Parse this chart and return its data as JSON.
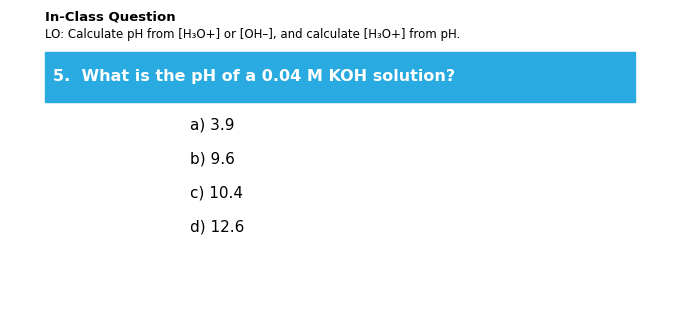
{
  "background_color": "#ffffff",
  "title_bold": "In-Class Question",
  "subtitle": "LO: Calculate pH from [H₃O+] or [OH–], and calculate [H₃O+] from pH.",
  "question_box_color": "#29ABE2",
  "question_text": "5.  What is the pH of a 0.04 M KOH solution?",
  "question_text_color": "#ffffff",
  "answers": [
    "a) 3.9",
    "b) 9.6",
    "c) 10.4",
    "d) 12.6"
  ],
  "answer_color": "#000000",
  "title_fontsize": 9.5,
  "subtitle_fontsize": 8.5,
  "question_fontsize": 11.5,
  "answer_fontsize": 11
}
